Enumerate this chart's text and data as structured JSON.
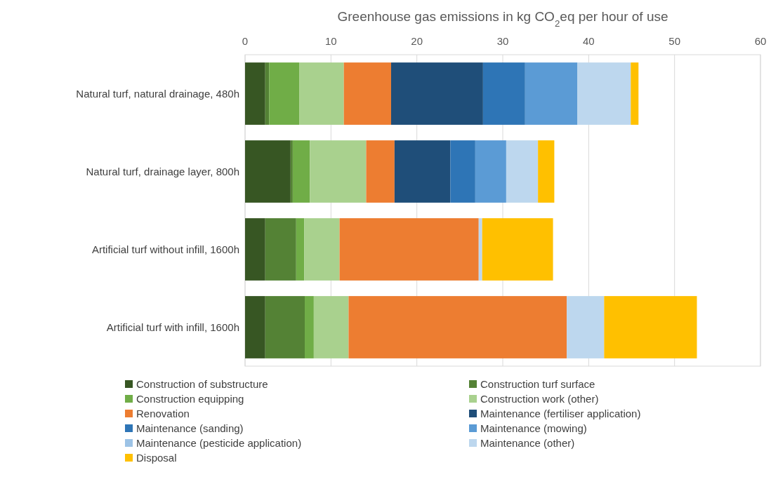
{
  "chart_data": {
    "type": "bar",
    "orientation": "horizontal",
    "stacked": true,
    "xlabel": "Greenhouse gas emissions in kg CO$_{2}$eq per hour of use",
    "categories": [
      "Natural turf, natural drainage, 480h",
      "Natural turf, drainage layer, 800h",
      "Artificial turf without infill, 1600h",
      "Artificial turf with infill, 1600h"
    ],
    "xlim": [
      0,
      60
    ],
    "xticks": [
      0,
      10,
      20,
      30,
      40,
      50,
      60
    ],
    "grid": "x",
    "legend": "bottom",
    "series": [
      {
        "name": "Construction of substructure",
        "color": "#375623",
        "values": [
          2.35,
          5.3,
          2.35,
          2.35
        ]
      },
      {
        "name": "Construction turf surface",
        "color": "#548235",
        "values": [
          0.45,
          0.25,
          3.6,
          4.6
        ]
      },
      {
        "name": "Construction equipping",
        "color": "#70ad47",
        "values": [
          3.5,
          2.0,
          0.95,
          1.05
        ]
      },
      {
        "name": "Construction work (other)",
        "color": "#a9d18e",
        "values": [
          5.2,
          6.55,
          4.1,
          4.05
        ]
      },
      {
        "name": "Renovation",
        "color": "#ed7d31",
        "values": [
          5.5,
          3.3,
          16.2,
          25.4
        ]
      },
      {
        "name": "Maintenance (fertiliser application)",
        "color": "#1f4e79",
        "values": [
          10.7,
          6.5,
          0,
          0
        ]
      },
      {
        "name": "Maintenance (sanding)",
        "color": "#2e75b6",
        "values": [
          4.9,
          2.9,
          0,
          0
        ]
      },
      {
        "name": "Maintenance (mowing)",
        "color": "#5b9bd5",
        "values": [
          6.1,
          3.6,
          0,
          0
        ]
      },
      {
        "name": "Maintenance (pesticide application)",
        "color": "#9dc3e6",
        "values": [
          0,
          0,
          0,
          0
        ]
      },
      {
        "name": "Maintenance (other)",
        "color": "#bdd7ee",
        "values": [
          6.2,
          3.7,
          0.4,
          4.35
        ]
      },
      {
        "name": "Disposal",
        "color": "#ffc000",
        "values": [
          0.9,
          1.9,
          8.25,
          10.8
        ]
      }
    ]
  }
}
